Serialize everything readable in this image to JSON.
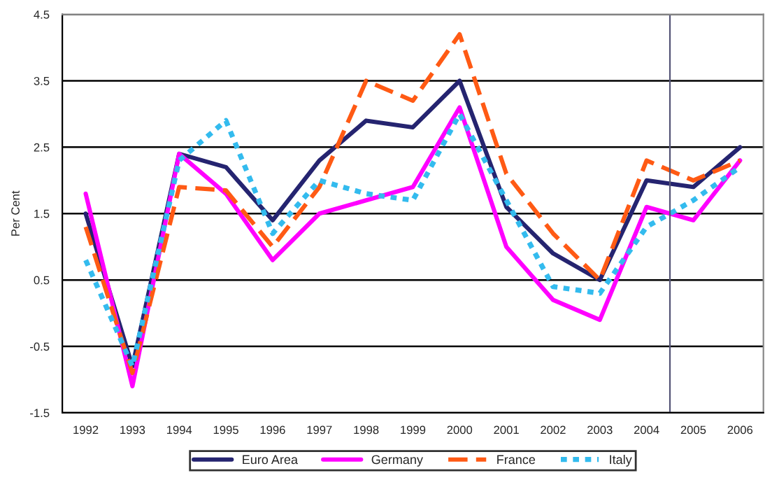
{
  "chart_data": {
    "type": "line",
    "ylabel": "Per Cent",
    "x": [
      1992,
      1993,
      1994,
      1995,
      1996,
      1997,
      1998,
      1999,
      2000,
      2001,
      2002,
      2003,
      2004,
      2005,
      2006
    ],
    "xlim": [
      1991.5,
      2006.5
    ],
    "xticks": [
      1992,
      1993,
      1994,
      1995,
      1996,
      1997,
      1998,
      1999,
      2000,
      2001,
      2002,
      2003,
      2004,
      2005,
      2006
    ],
    "ylim": [
      -1.5,
      4.5
    ],
    "yticks": [
      -1.5,
      -0.5,
      0.5,
      1.5,
      2.5,
      3.5,
      4.5
    ],
    "grid": "y",
    "legend": "bottom",
    "marker": "none",
    "ref_lines": [
      {
        "axis": "x",
        "value": 2004.5,
        "color": "#555577",
        "line_style": "solid"
      }
    ],
    "series": [
      {
        "name": "Euro Area",
        "color": "#252470",
        "line_style": "solid",
        "values": [
          1.5,
          -0.8,
          2.4,
          2.2,
          1.4,
          2.3,
          2.9,
          2.8,
          3.5,
          1.6,
          0.9,
          0.5,
          2.0,
          1.9,
          2.5
        ]
      },
      {
        "name": "Germany",
        "color": "#ff00ff",
        "line_style": "solid",
        "values": [
          1.8,
          -1.1,
          2.4,
          1.8,
          0.8,
          1.5,
          1.7,
          1.9,
          3.1,
          1.0,
          0.2,
          -0.1,
          1.6,
          1.4,
          2.3
        ]
      },
      {
        "name": "France",
        "color": "#ff5a14",
        "line_style": "dashed",
        "values": [
          1.3,
          -0.9,
          1.9,
          1.85,
          1.0,
          1.9,
          3.5,
          3.2,
          4.2,
          2.1,
          1.2,
          0.5,
          2.3,
          2.0,
          2.3
        ]
      },
      {
        "name": "Italy",
        "color": "#33bbee",
        "line_style": "dotted",
        "values": [
          0.8,
          -0.8,
          2.3,
          2.9,
          1.2,
          2.0,
          1.8,
          1.7,
          3.0,
          1.7,
          0.4,
          0.3,
          1.3,
          1.7,
          2.2
        ]
      }
    ]
  }
}
